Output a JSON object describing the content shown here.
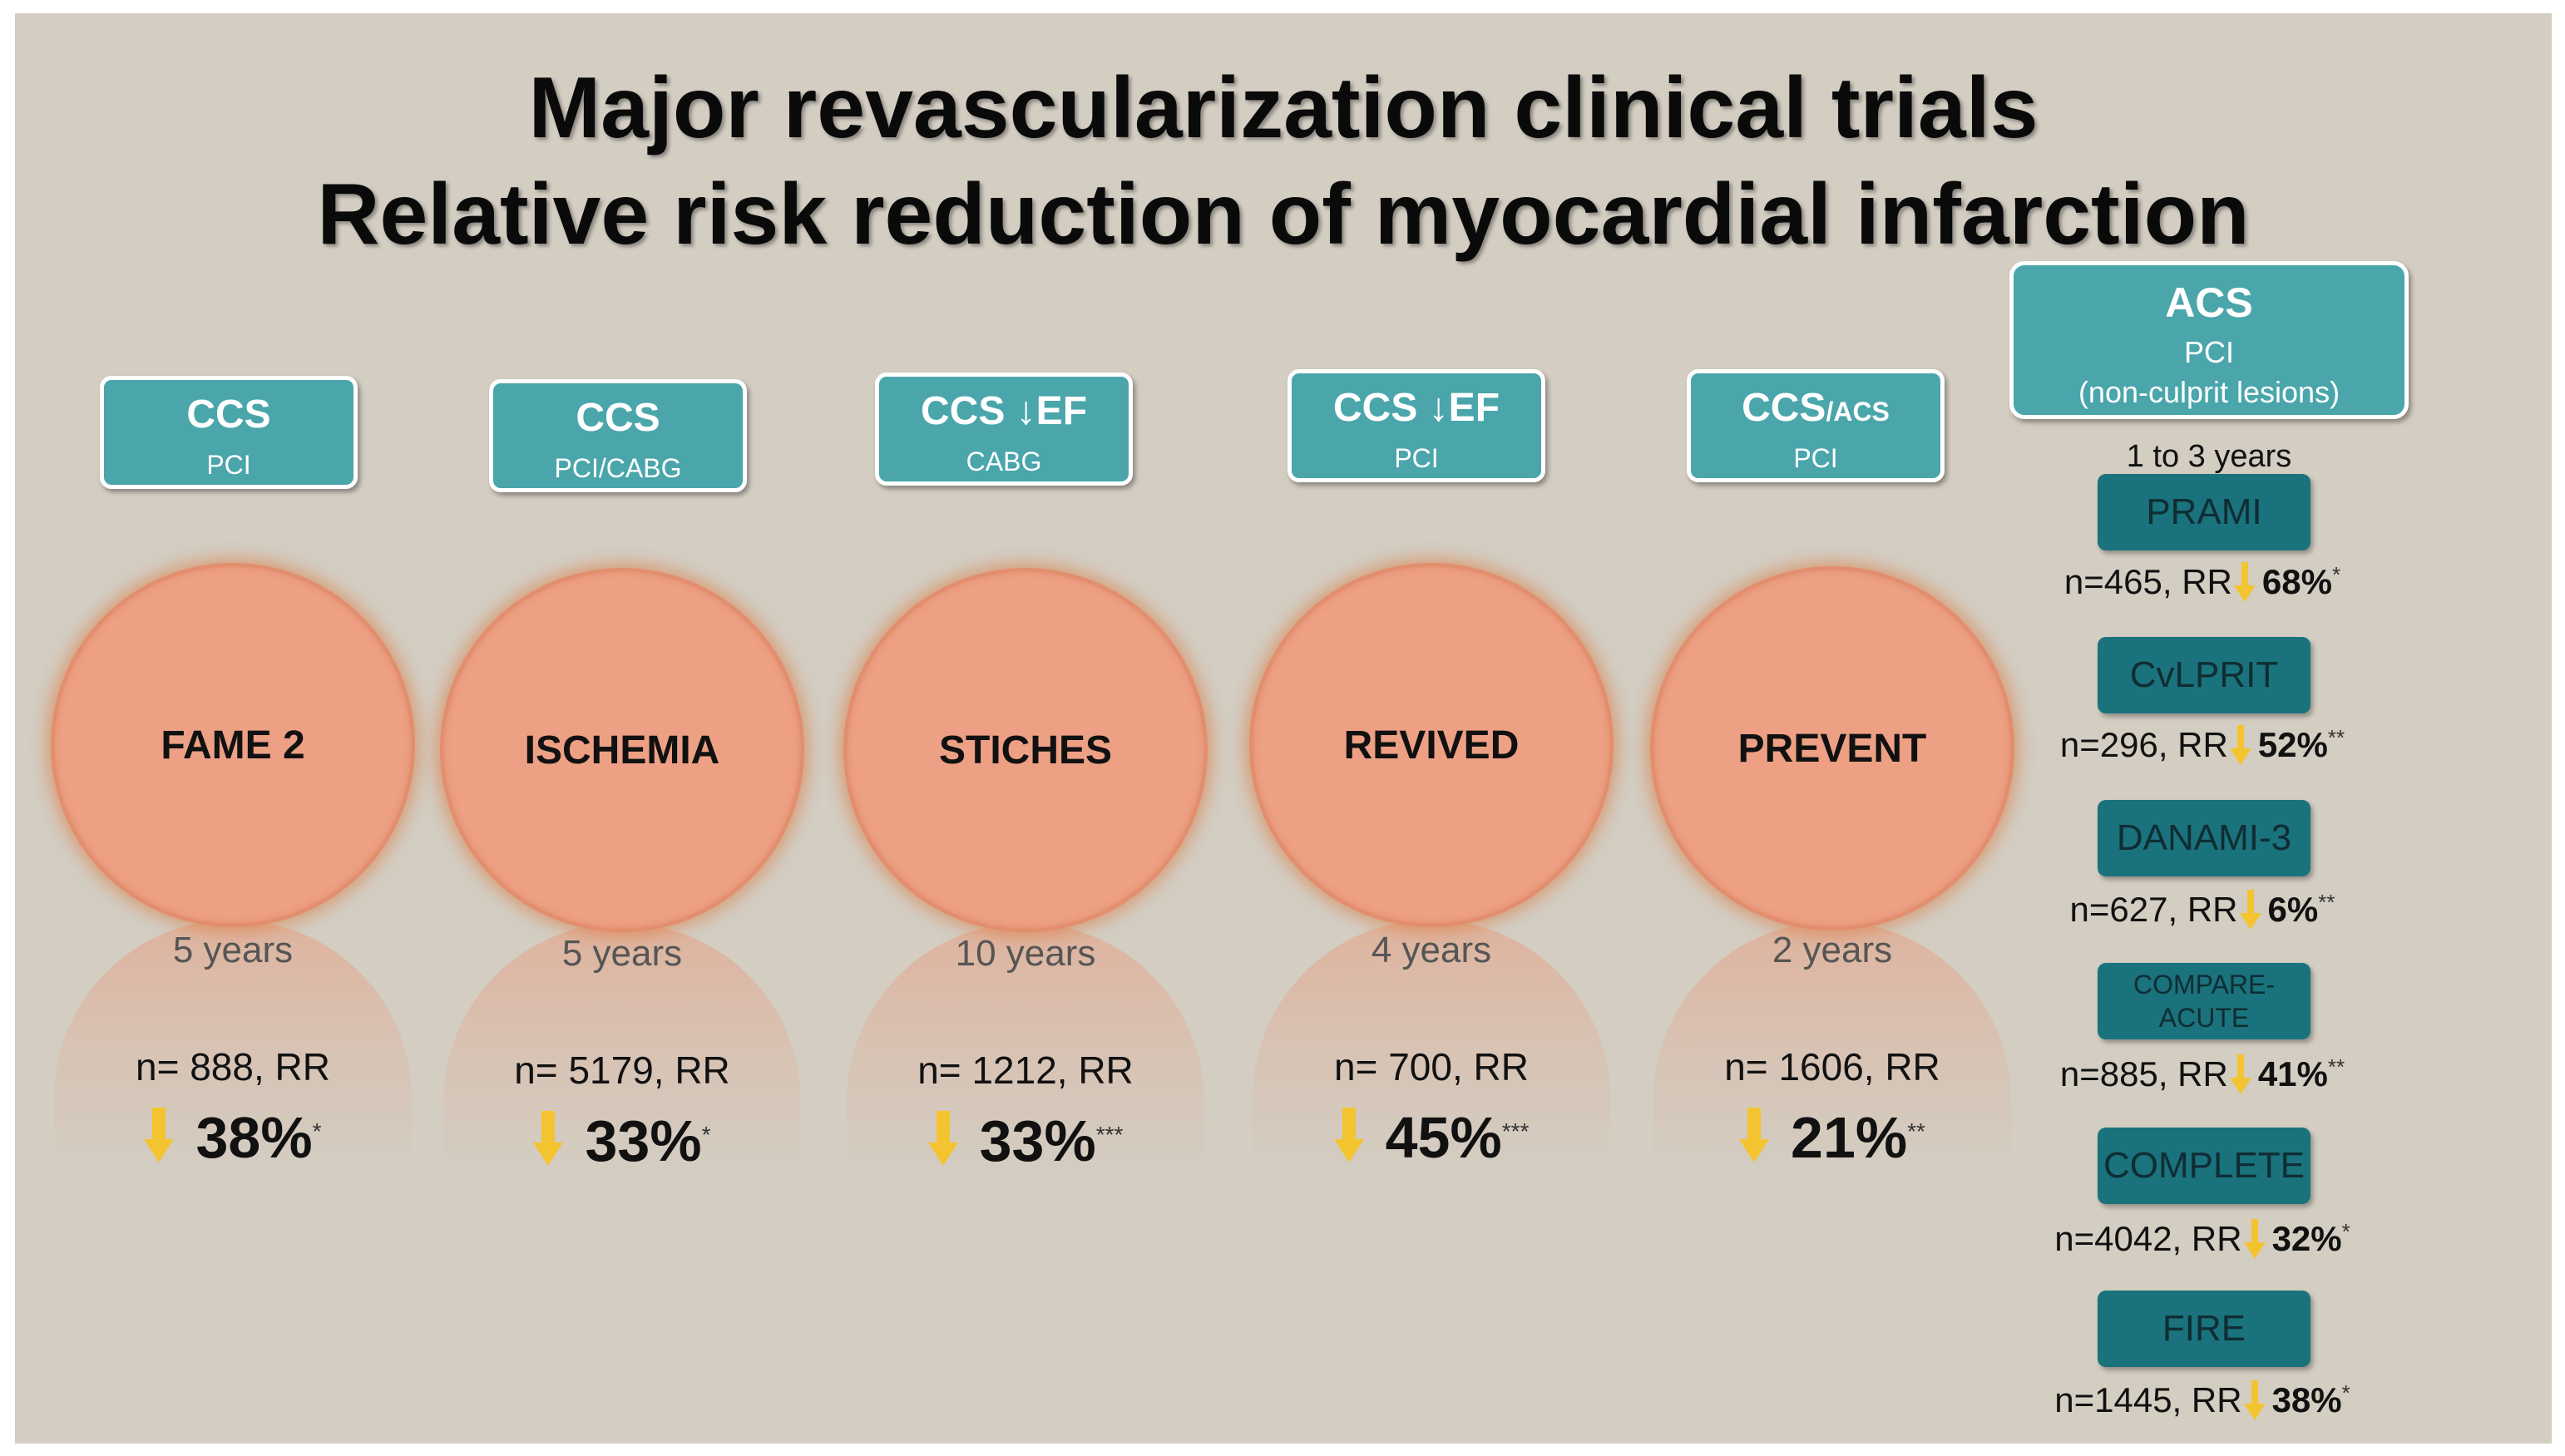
{
  "title": {
    "line1": "Major revascularization clinical trials",
    "line2": "Relative risk reduction of myocardial infarction"
  },
  "colors": {
    "background": "#d3cdc2",
    "category_box": "#4aa6ab",
    "trial_circle": "#eda084",
    "acs_trial_box": "#1a727c",
    "decrease_arrow": "#f4c430"
  },
  "arrow_icon": "down-arrow-icon",
  "ccs_trials": [
    {
      "category": "CCS",
      "category_small": "",
      "category_arrow": "",
      "procedure": "PCI",
      "name": "FAME 2",
      "followup": "5 years",
      "n_rr": "n= 888, RR",
      "reduction": "38%",
      "significance": "*"
    },
    {
      "category": "CCS",
      "category_small": "",
      "category_arrow": "",
      "procedure": "PCI/CABG",
      "name": "ISCHEMIA",
      "followup": "5 years",
      "n_rr": "n= 5179, RR",
      "reduction": "33%",
      "significance": "*"
    },
    {
      "category": "CCS",
      "category_small": "",
      "category_arrow": "↓EF",
      "procedure": "CABG",
      "name": "STICHES",
      "followup": "10 years",
      "n_rr": "n= 1212, RR",
      "reduction": "33%",
      "significance": "***"
    },
    {
      "category": "CCS",
      "category_small": "",
      "category_arrow": "↓EF",
      "procedure": "PCI",
      "name": "REVIVED",
      "followup": "4 years",
      "n_rr": "n= 700, RR",
      "reduction": "45%",
      "significance": "***"
    },
    {
      "category": "CCS",
      "category_small": "/ACS",
      "category_arrow": "",
      "procedure": "PCI",
      "name": "PREVENT",
      "followup": "2 years",
      "n_rr": "n= 1606, RR",
      "reduction": "21%",
      "significance": "**"
    }
  ],
  "acs": {
    "category": "ACS",
    "procedure": "PCI",
    "lesions": "(non-culprit lesions)",
    "followup": "1 to 3 years",
    "trials": [
      {
        "name": "PRAMI",
        "name_line2": "",
        "n_rr": "n=465, RR",
        "reduction": "68%",
        "significance": "*"
      },
      {
        "name": "CvLPRIT",
        "name_line2": "",
        "n_rr": "n=296, RR",
        "reduction": "52%",
        "significance": "**"
      },
      {
        "name": "DANAMI-3",
        "name_line2": "",
        "n_rr": "n=627, RR",
        "reduction": "6%",
        "significance": "**"
      },
      {
        "name": "COMPARE-",
        "name_line2": "ACUTE",
        "n_rr": "n=885, RR",
        "reduction": "41%",
        "significance": "**"
      },
      {
        "name": "COMPLETE",
        "name_line2": "",
        "n_rr": "n=4042, RR",
        "reduction": "32%",
        "significance": "*"
      },
      {
        "name": "FIRE",
        "name_line2": "",
        "n_rr": "n=1445, RR",
        "reduction": "38%",
        "significance": "*"
      }
    ]
  }
}
